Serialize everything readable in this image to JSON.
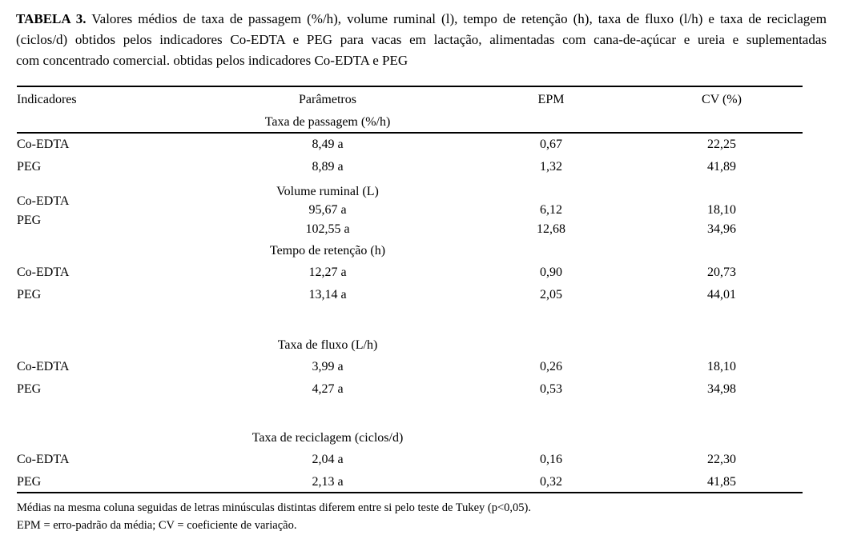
{
  "caption": {
    "label": "TABELA 3.",
    "lines": [
      "Valores médios de taxa de passagem (%/h), volume ruminal (l), tempo de retenção (h), taxa de fluxo (l/h) e taxa de reciclagem",
      "(ciclos/d) obtidos pelos indicadores Co-EDTA e PEG para vacas em lactação, alimentadas com cana-de-açúcar e ureia e suplementadas",
      "com concentrado comercial. obtidas pelos indicadores Co-EDTA e PEG"
    ]
  },
  "table": {
    "columns": [
      "Indicadores",
      "Parâmetros",
      "EPM",
      "CV (%)"
    ],
    "sections": [
      {
        "title": "Taxa de passagem (%/h)",
        "rows": [
          {
            "indicator": "Co-EDTA",
            "parametro": "8,49 a",
            "epm": "0,67",
            "cv": "22,25"
          },
          {
            "indicator": "PEG",
            "parametro": "8,89 a",
            "epm": "1,32",
            "cv": "41,89"
          }
        ]
      },
      {
        "title": "Volume ruminal (L)",
        "rows": [
          {
            "indicator": "Co-EDTA",
            "parametro": "95,67 a",
            "epm": "6,12",
            "cv": "18,10"
          },
          {
            "indicator": "PEG",
            "parametro": "102,55 a",
            "epm": "12,68",
            "cv": "34,96"
          }
        ]
      },
      {
        "title": "Tempo de retenção (h)",
        "rows": [
          {
            "indicator": "Co-EDTA",
            "parametro": "12,27 a",
            "epm": "0,90",
            "cv": "20,73"
          },
          {
            "indicator": "PEG",
            "parametro": "13,14 a",
            "epm": "2,05",
            "cv": "44,01"
          }
        ]
      },
      {
        "title": "Taxa de fluxo (L/h)",
        "rows": [
          {
            "indicator": "Co-EDTA",
            "parametro": "3,99 a",
            "epm": "0,26",
            "cv": "18,10"
          },
          {
            "indicator": "PEG",
            "parametro": "4,27 a",
            "epm": "0,53",
            "cv": "34,98"
          }
        ]
      },
      {
        "title": "Taxa de reciclagem (ciclos/d)",
        "rows": [
          {
            "indicator": "Co-EDTA",
            "parametro": "2,04 a",
            "epm": "0,16",
            "cv": "22,30"
          },
          {
            "indicator": "PEG",
            "parametro": "2,13 a",
            "epm": "0,32",
            "cv": "41,85"
          }
        ]
      }
    ]
  },
  "footnotes": [
    "Médias na mesma coluna seguidas de letras minúsculas distintas diferem entre si pelo teste de Tukey (p<0,05).",
    "EPM = erro-padrão da média; CV = coeficiente de variação."
  ]
}
